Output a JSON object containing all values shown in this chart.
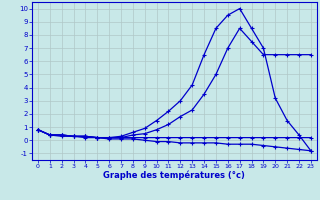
{
  "xlabel": "Graphe des températures (°c)",
  "xlim": [
    -0.5,
    23.5
  ],
  "ylim": [
    -1.5,
    10.5
  ],
  "xticks": [
    0,
    1,
    2,
    3,
    4,
    5,
    6,
    7,
    8,
    9,
    10,
    11,
    12,
    13,
    14,
    15,
    16,
    17,
    18,
    19,
    20,
    21,
    22,
    23
  ],
  "yticks": [
    -1,
    0,
    1,
    2,
    3,
    4,
    5,
    6,
    7,
    8,
    9,
    10
  ],
  "background_color": "#c8e8e8",
  "grid_color": "#b0c8c8",
  "line_color": "#0000cc",
  "series": [
    {
      "x": [
        0,
        1,
        2,
        3,
        4,
        5,
        6,
        7,
        8,
        9,
        10,
        11,
        12,
        13,
        14,
        15,
        16,
        17,
        18,
        19,
        20,
        21,
        22,
        23
      ],
      "y": [
        0.8,
        0.4,
        0.4,
        0.3,
        0.3,
        0.2,
        0.2,
        0.2,
        0.2,
        0.2,
        0.2,
        0.2,
        0.2,
        0.2,
        0.2,
        0.2,
        0.2,
        0.2,
        0.2,
        0.2,
        0.2,
        0.2,
        0.2,
        0.2
      ]
    },
    {
      "x": [
        0,
        1,
        2,
        3,
        4,
        5,
        6,
        7,
        8,
        9,
        10,
        11,
        12,
        13,
        14,
        15,
        16,
        17,
        18,
        19,
        20,
        21,
        22,
        23
      ],
      "y": [
        0.8,
        0.4,
        0.4,
        0.3,
        0.3,
        0.2,
        0.2,
        0.2,
        0.4,
        0.5,
        0.8,
        1.2,
        1.8,
        2.3,
        3.5,
        5.0,
        7.0,
        8.5,
        7.5,
        6.5,
        6.5,
        6.5,
        6.5,
        6.5
      ]
    },
    {
      "x": [
        0,
        1,
        2,
        3,
        4,
        5,
        6,
        7,
        8,
        9,
        10,
        11,
        12,
        13,
        14,
        15,
        16,
        17,
        18,
        19,
        20,
        21,
        22,
        23
      ],
      "y": [
        0.8,
        0.4,
        0.4,
        0.3,
        0.3,
        0.2,
        0.2,
        0.3,
        0.6,
        0.9,
        1.5,
        2.2,
        3.0,
        4.2,
        6.5,
        8.5,
        9.5,
        10.0,
        8.5,
        7.0,
        3.2,
        1.5,
        0.4,
        -0.8
      ]
    },
    {
      "x": [
        0,
        1,
        2,
        3,
        4,
        5,
        6,
        7,
        8,
        9,
        10,
        11,
        12,
        13,
        14,
        15,
        16,
        17,
        18,
        19,
        20,
        21,
        22,
        23
      ],
      "y": [
        0.8,
        0.4,
        0.3,
        0.3,
        0.2,
        0.2,
        0.1,
        0.1,
        0.1,
        0.0,
        -0.1,
        -0.1,
        -0.2,
        -0.2,
        -0.2,
        -0.2,
        -0.3,
        -0.3,
        -0.3,
        -0.4,
        -0.5,
        -0.6,
        -0.7,
        -0.8
      ]
    }
  ]
}
